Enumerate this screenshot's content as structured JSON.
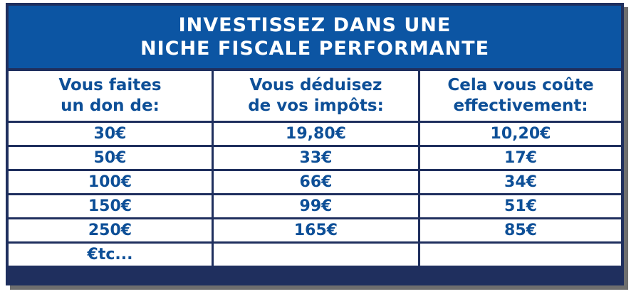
{
  "header": {
    "line1": "INVESTISSEZ DANS UNE",
    "line2": "NICHE FISCALE PERFORMANTE"
  },
  "columns": [
    {
      "line1": "Vous faites",
      "line2": "un don de:"
    },
    {
      "line1": "Vous déduisez",
      "line2": "de vos impôts:"
    },
    {
      "line1": "Cela vous coûte",
      "line2": "effectivement:"
    }
  ],
  "rows": [
    [
      "30€",
      "19,80€",
      "10,20€"
    ],
    [
      "50€",
      "33€",
      "17€"
    ],
    [
      "100€",
      "66€",
      "34€"
    ],
    [
      "150€",
      "99€",
      "51€"
    ],
    [
      "250€",
      "165€",
      "85€"
    ],
    [
      "€tc...",
      "",
      ""
    ]
  ],
  "colors": {
    "header_bg": "#0c55a3",
    "border": "#1f2f5e",
    "text": "#0d4f97"
  }
}
